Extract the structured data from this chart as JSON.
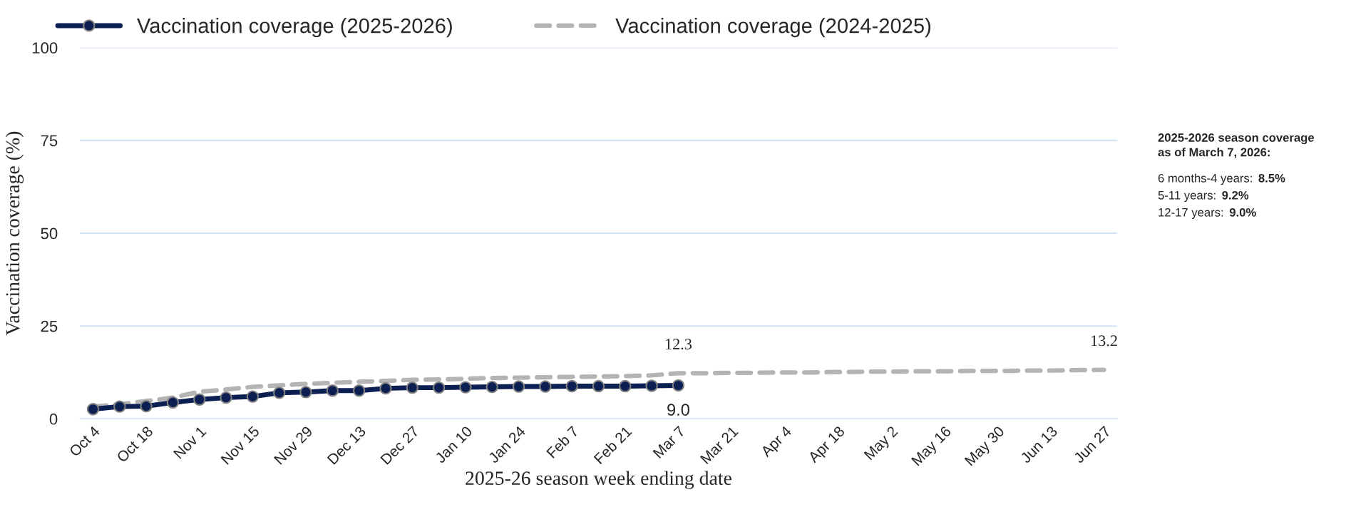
{
  "chart_data": {
    "type": "line",
    "xlabel": "2025-26 season week ending date",
    "ylabel": "Vaccination coverage (%)",
    "categories": [
      "Oct 4",
      null,
      "Oct 18",
      null,
      "Nov 1",
      null,
      "Nov 15",
      null,
      "Nov 29",
      null,
      "Dec 13",
      null,
      "Dec 27",
      null,
      "Jan 10",
      null,
      "Jan 24",
      null,
      "Feb 7",
      null,
      "Feb 21",
      null,
      "Mar 7",
      null,
      "Mar 21",
      null,
      "Apr 4",
      null,
      "Apr 18",
      null,
      "May 2",
      null,
      "May 16",
      null,
      "May 30",
      null,
      "Jun 13",
      null,
      "Jun 27"
    ],
    "series": [
      {
        "name": "Vaccination coverage (2025-2026)",
        "color": "#0b1f52",
        "marker": "circle",
        "line_style": "solid",
        "values": [
          2.6,
          3.3,
          3.4,
          4.4,
          5.2,
          5.7,
          6.0,
          7.0,
          7.2,
          7.6,
          7.6,
          8.2,
          8.4,
          8.4,
          8.5,
          8.6,
          8.7,
          8.7,
          8.8,
          8.8,
          8.8,
          8.9,
          9.0,
          null,
          null,
          null,
          null,
          null,
          null,
          null,
          null,
          null,
          null,
          null,
          null,
          null,
          null,
          null,
          null
        ],
        "value_labels": [
          null,
          null,
          null,
          null,
          null,
          null,
          null,
          null,
          null,
          null,
          null,
          null,
          null,
          null,
          null,
          null,
          null,
          null,
          null,
          null,
          null,
          null,
          "9.0",
          null,
          null,
          null,
          null,
          null,
          null,
          null,
          null,
          null,
          null,
          null,
          null,
          null,
          null,
          null,
          null
        ]
      },
      {
        "name": "Vaccination coverage (2024-2025)",
        "color": "#b4b4b4",
        "marker": "none",
        "line_style": "dashed",
        "values": [
          3.3,
          3.9,
          4.8,
          5.7,
          7.3,
          7.9,
          8.6,
          9.0,
          9.4,
          9.7,
          10.0,
          10.2,
          10.5,
          10.6,
          10.8,
          11.0,
          11.1,
          11.2,
          11.3,
          11.4,
          11.5,
          11.7,
          12.3,
          12.3,
          12.4,
          12.4,
          12.5,
          12.5,
          12.6,
          12.7,
          12.7,
          12.8,
          12.8,
          12.9,
          12.9,
          13.0,
          13.0,
          13.1,
          13.2
        ],
        "value_labels": [
          null,
          null,
          null,
          null,
          null,
          null,
          null,
          null,
          null,
          null,
          null,
          null,
          null,
          null,
          null,
          null,
          null,
          null,
          null,
          null,
          null,
          null,
          "12.3",
          null,
          null,
          null,
          null,
          null,
          null,
          null,
          null,
          null,
          null,
          null,
          null,
          null,
          null,
          null,
          "13.2"
        ]
      }
    ],
    "ylim": [
      0,
      100
    ],
    "yticks": [
      0,
      25,
      50,
      75,
      100
    ],
    "grid": "y",
    "legend": "top",
    "annotations": [
      "2025-2026 season coverage\nas of March 7, 2026:",
      "6 months-4 years: 8.5%",
      "5-11 years: 9.2%",
      "12-17 years: 9.0%"
    ]
  }
}
